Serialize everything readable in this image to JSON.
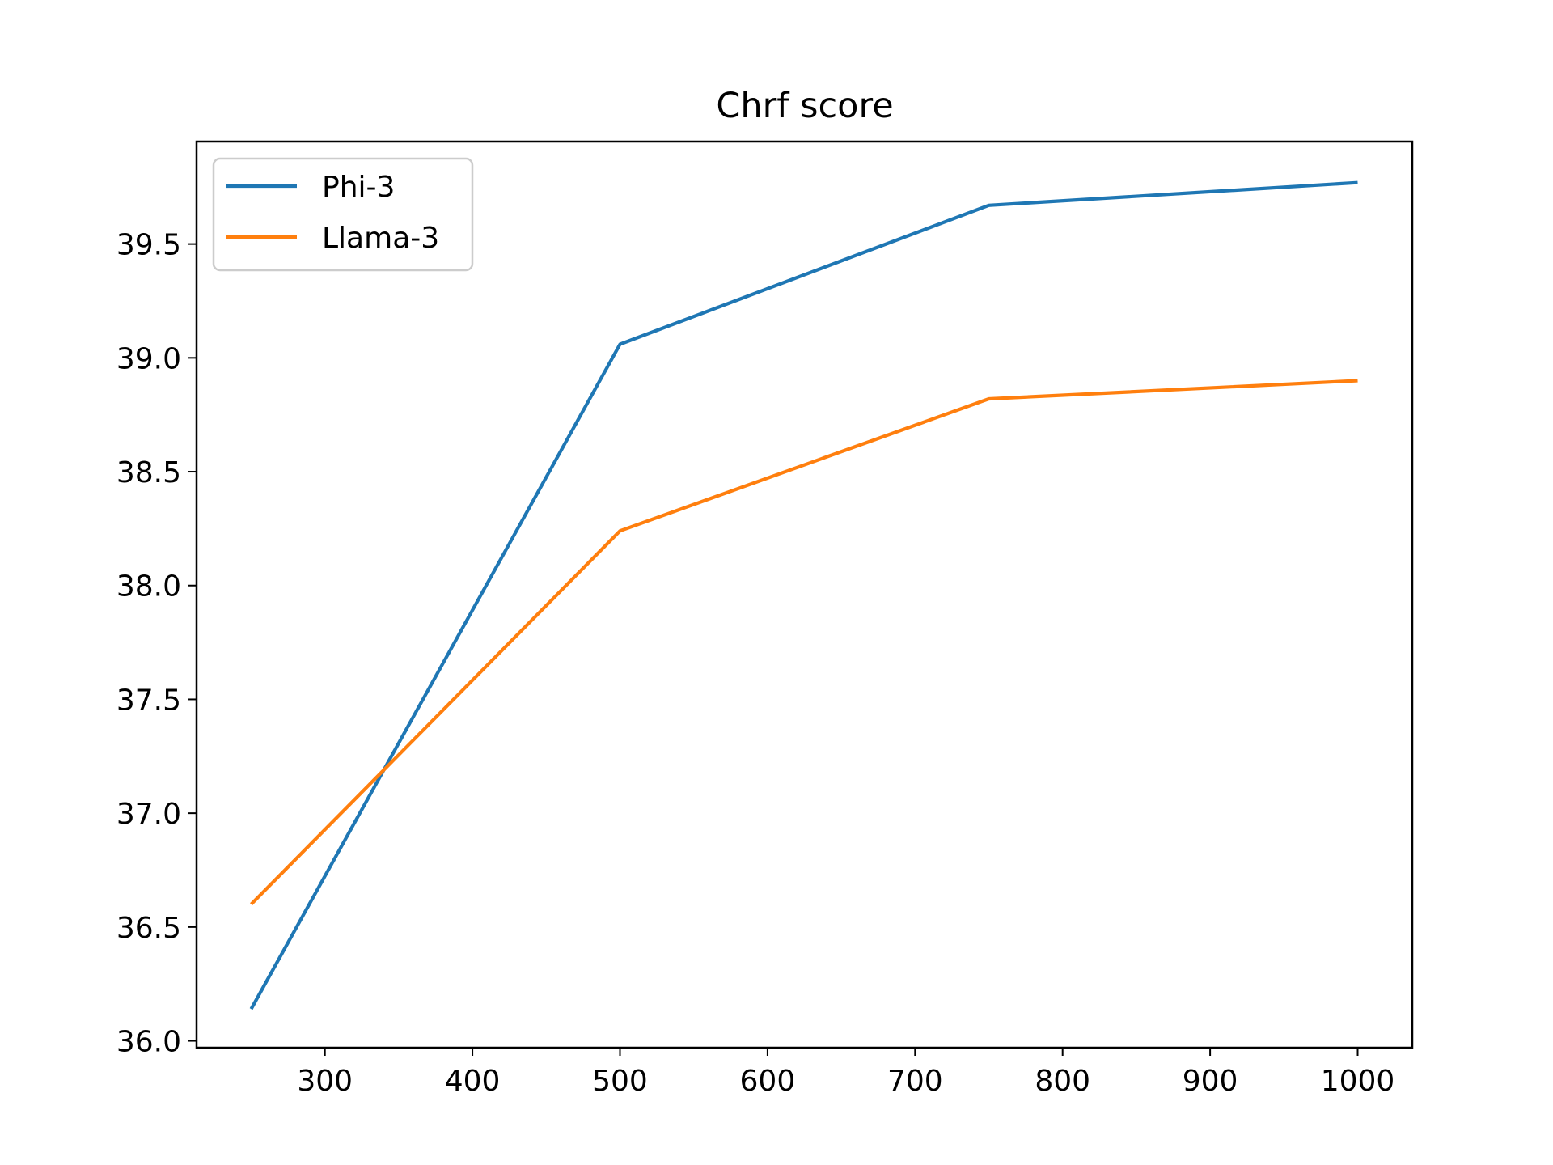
{
  "chart_data": {
    "type": "line",
    "title": "Chrf score",
    "xlabel": "",
    "ylabel": "",
    "x": [
      250,
      500,
      750,
      1000
    ],
    "xlim": [
      213,
      1037
    ],
    "ylim": [
      35.97,
      39.95
    ],
    "xticks": [
      300,
      400,
      500,
      600,
      700,
      800,
      900,
      1000
    ],
    "yticks": [
      36.0,
      36.5,
      37.0,
      37.5,
      38.0,
      38.5,
      39.0,
      39.5
    ],
    "xtick_labels": [
      "300",
      "400",
      "500",
      "600",
      "700",
      "800",
      "900",
      "1000"
    ],
    "ytick_labels": [
      "36.0",
      "36.5",
      "37.0",
      "37.5",
      "38.0",
      "38.5",
      "39.0",
      "39.5"
    ],
    "grid": false,
    "legend_position": "upper-left",
    "series": [
      {
        "name": "Phi-3",
        "color": "#1f77b4",
        "values": [
          36.14,
          39.06,
          39.67,
          39.77
        ]
      },
      {
        "name": "Llama-3",
        "color": "#ff7f0e",
        "values": [
          36.6,
          38.24,
          38.82,
          38.9
        ]
      }
    ]
  }
}
